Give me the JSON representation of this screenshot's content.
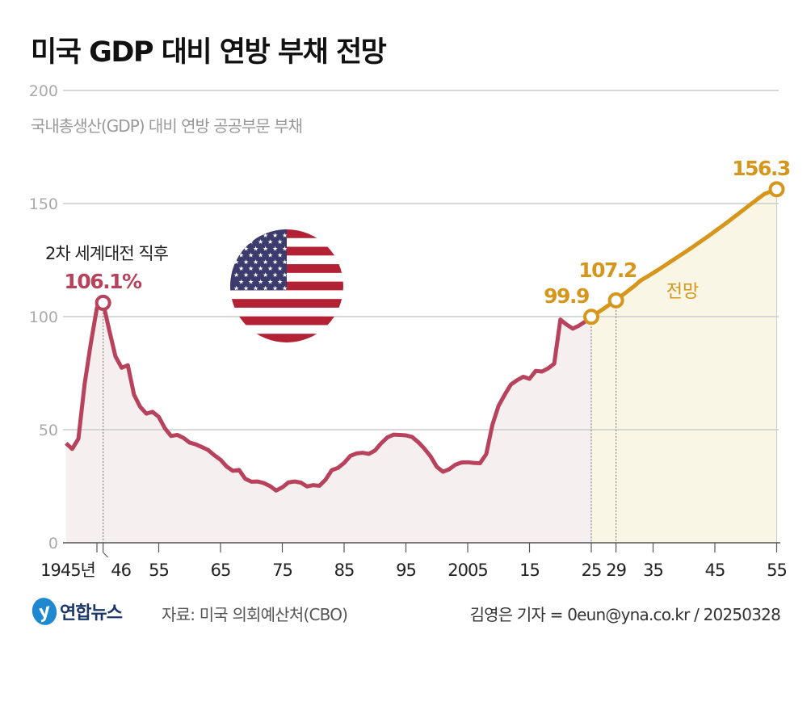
{
  "title": "미국 GDP 대비 연방 부채 전망",
  "footer": {
    "logo_text": "연합뉴스",
    "source": "자료: 미국 의회예산처(CBO)",
    "credit": "김영은 기자 = 0eun@yna.co.kr / 20250328"
  },
  "colors": {
    "historical": "#b8415c",
    "projection": "#d6961b",
    "historical_fill": "#f5eff0",
    "projection_fill": "#f9f6e5",
    "grid": "#cccccc",
    "flag_red": "#b22234",
    "flag_blue": "#3c3b6e"
  },
  "chart_data": {
    "type": "line",
    "subtitle": "국내총생산(GDP) 대비 연방 공공부문 부채",
    "ylim": [
      0,
      200
    ],
    "yticks": [
      0,
      50,
      100,
      150,
      200
    ],
    "xlim": [
      1940,
      2055
    ],
    "xticks": [
      {
        "year": 1945,
        "label": "1945년"
      },
      {
        "year": 1946,
        "label": "46"
      },
      {
        "year": 1955,
        "label": "55"
      },
      {
        "year": 1965,
        "label": "65"
      },
      {
        "year": 1975,
        "label": "75"
      },
      {
        "year": 1985,
        "label": "85"
      },
      {
        "year": 1995,
        "label": "95"
      },
      {
        "year": 2005,
        "label": "2005"
      },
      {
        "year": 2015,
        "label": "15"
      },
      {
        "year": 2025,
        "label": "25"
      },
      {
        "year": 2029,
        "label": "29"
      },
      {
        "year": 2035,
        "label": "35"
      },
      {
        "year": 2045,
        "label": "45"
      },
      {
        "year": 2055,
        "label": "55"
      }
    ],
    "grid": true,
    "series": [
      {
        "kind": "historical",
        "x": [
          1940,
          1941,
          1942,
          1943,
          1944,
          1945,
          1946,
          1947,
          1948,
          1949,
          1950,
          1951,
          1952,
          1953,
          1954,
          1955,
          1956,
          1957,
          1958,
          1959,
          1960,
          1961,
          1962,
          1963,
          1964,
          1965,
          1966,
          1967,
          1968,
          1969,
          1970,
          1971,
          1972,
          1973,
          1974,
          1975,
          1976,
          1977,
          1978,
          1979,
          1980,
          1981,
          1982,
          1983,
          1984,
          1985,
          1986,
          1987,
          1988,
          1989,
          1990,
          1991,
          1992,
          1993,
          1994,
          1995,
          1996,
          1997,
          1998,
          1999,
          2000,
          2001,
          2002,
          2003,
          2004,
          2005,
          2006,
          2007,
          2008,
          2009,
          2010,
          2011,
          2012,
          2013,
          2014,
          2015,
          2016,
          2017,
          2018,
          2019,
          2020,
          2021,
          2022,
          2023,
          2024,
          2025
        ],
        "y": [
          44,
          41.5,
          46,
          70,
          88,
          103.9,
          106.1,
          93.9,
          82.4,
          77.4,
          78.5,
          65.5,
          60.1,
          57.1,
          57.9,
          55.7,
          50.6,
          47.2,
          47.7,
          46.4,
          44.3,
          43.5,
          42.3,
          41,
          38.7,
          36.7,
          33.7,
          31.8,
          32.2,
          28.3,
          27,
          27.1,
          26.4,
          25.1,
          23.1,
          24.5,
          26.7,
          27.1,
          26.6,
          24.9,
          25.5,
          25.2,
          27.9,
          32.1,
          33.1,
          35.3,
          38.4,
          39.5,
          39.8,
          39.3,
          40.8,
          44,
          46.6,
          47.8,
          47.7,
          47.5,
          46.8,
          44.5,
          41.6,
          38.2,
          33.6,
          31.4,
          32.5,
          34.5,
          35.5,
          35.6,
          35.3,
          35.2,
          39.2,
          52.2,
          60.6,
          65.5,
          70,
          71.9,
          73.4,
          72.5,
          76,
          75.7,
          77.1,
          79.2,
          98.7,
          96.5,
          94.7,
          96,
          97.8,
          99.9
        ]
      },
      {
        "kind": "projection",
        "x": [
          2025,
          2026,
          2027,
          2028,
          2029,
          2030,
          2031,
          2032,
          2033,
          2034,
          2035,
          2036,
          2037,
          2038,
          2039,
          2040,
          2041,
          2042,
          2043,
          2044,
          2045,
          2046,
          2047,
          2048,
          2049,
          2050,
          2051,
          2052,
          2053,
          2054,
          2055
        ],
        "y": [
          99.9,
          101.7,
          103.5,
          105.4,
          107.2,
          109.4,
          111.5,
          113.6,
          116,
          117.6,
          119.3,
          121,
          122.8,
          124.6,
          126.4,
          128.2,
          130,
          131.9,
          133.8,
          135.7,
          137.7,
          139.7,
          141.7,
          143.8,
          145.9,
          148,
          150.1,
          152.2,
          154.2,
          155.3,
          156.3
        ]
      }
    ],
    "annotations": [
      {
        "year": 1946,
        "value": 106.1,
        "label": "106.1%",
        "caption": "2차 세계대전 직후",
        "kind": "historical"
      },
      {
        "year": 2025,
        "value": 99.9,
        "label": "99.9",
        "kind": "projection"
      },
      {
        "year": 2029,
        "value": 107.2,
        "label": "107.2",
        "kind": "projection"
      },
      {
        "year": 2055,
        "value": 156.3,
        "label": "156.3",
        "kind": "projection"
      }
    ],
    "projection_label": "전망"
  }
}
